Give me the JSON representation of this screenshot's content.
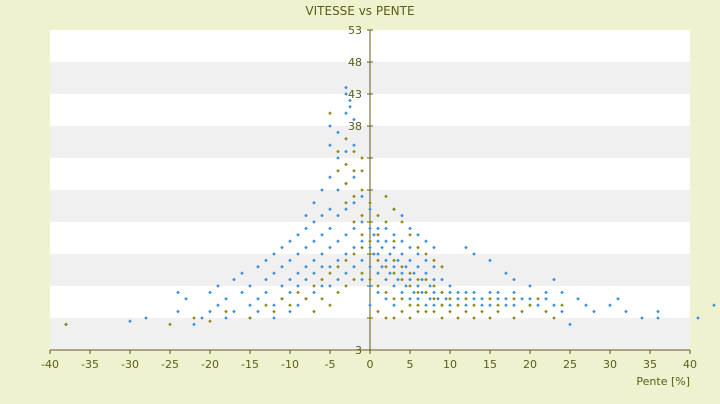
{
  "chart_data": {
    "type": "scatter",
    "title": "VITESSE vs PENTE",
    "xlabel": "Pente [%]",
    "ylabel": "",
    "xlim": [
      -40,
      40
    ],
    "ylim": [
      3,
      53
    ],
    "x_ticks": [
      -40,
      -35,
      -30,
      -25,
      -20,
      -15,
      -10,
      -5,
      0,
      5,
      10,
      15,
      20,
      25,
      30,
      35,
      40
    ],
    "y_ticks": [
      3,
      8,
      13,
      18,
      23,
      28,
      33,
      38,
      43,
      48,
      53
    ],
    "y_tick_labels": [
      "3",
      "",
      "",
      "",
      "",
      "",
      "",
      "38",
      "43",
      "48",
      "53"
    ],
    "grid": "alternating horizontal bands",
    "band_colors": [
      "#ffffff",
      "#f0f0f0"
    ],
    "axis_color": "#5c5c1a",
    "title_color": "#5c5c1a",
    "series": [
      {
        "color": "#3a8fd8",
        "marker": "diamond",
        "points": [
          [
            -38,
            7
          ],
          [
            -30,
            7.5
          ],
          [
            -28,
            8
          ],
          [
            -24,
            12
          ],
          [
            -24,
            9
          ],
          [
            -23,
            11
          ],
          [
            -22,
            7
          ],
          [
            -21,
            8
          ],
          [
            -20,
            12
          ],
          [
            -20,
            9
          ],
          [
            -19,
            13
          ],
          [
            -19,
            10
          ],
          [
            -18,
            8
          ],
          [
            -18,
            11
          ],
          [
            -17,
            14
          ],
          [
            -17,
            9
          ],
          [
            -16,
            12
          ],
          [
            -16,
            15
          ],
          [
            -15,
            10
          ],
          [
            -15,
            13
          ],
          [
            -15,
            8
          ],
          [
            -14,
            16
          ],
          [
            -14,
            11
          ],
          [
            -14,
            9
          ],
          [
            -13,
            14
          ],
          [
            -13,
            12
          ],
          [
            -13,
            17
          ],
          [
            -12,
            10
          ],
          [
            -12,
            15
          ],
          [
            -12,
            18
          ],
          [
            -12,
            8
          ],
          [
            -11,
            13
          ],
          [
            -11,
            16
          ],
          [
            -11,
            19
          ],
          [
            -11,
            11
          ],
          [
            -10,
            14
          ],
          [
            -10,
            17
          ],
          [
            -10,
            20
          ],
          [
            -10,
            9
          ],
          [
            -10,
            12
          ],
          [
            -9,
            15
          ],
          [
            -9,
            18
          ],
          [
            -9,
            21
          ],
          [
            -9,
            13
          ],
          [
            -9,
            10
          ],
          [
            -8,
            16
          ],
          [
            -8,
            19
          ],
          [
            -8,
            22
          ],
          [
            -8,
            14
          ],
          [
            -8,
            11
          ],
          [
            -8,
            24
          ],
          [
            -7,
            17
          ],
          [
            -7,
            20
          ],
          [
            -7,
            23
          ],
          [
            -7,
            15
          ],
          [
            -7,
            12
          ],
          [
            -7,
            26
          ],
          [
            -6,
            18
          ],
          [
            -6,
            21
          ],
          [
            -6,
            24
          ],
          [
            -6,
            16
          ],
          [
            -6,
            13
          ],
          [
            -6,
            28
          ],
          [
            -5,
            19
          ],
          [
            -5,
            22
          ],
          [
            -5,
            25
          ],
          [
            -5,
            30
          ],
          [
            -5,
            35
          ],
          [
            -5,
            38
          ],
          [
            -5,
            16
          ],
          [
            -5,
            13
          ],
          [
            -4,
            20
          ],
          [
            -4,
            24
          ],
          [
            -4,
            28
          ],
          [
            -4,
            33
          ],
          [
            -4,
            37
          ],
          [
            -4,
            17
          ],
          [
            -4,
            14
          ],
          [
            -3,
            21
          ],
          [
            -3,
            25
          ],
          [
            -3,
            29
          ],
          [
            -3,
            34
          ],
          [
            -3,
            40
          ],
          [
            -3,
            43
          ],
          [
            -3,
            44
          ],
          [
            -3,
            18
          ],
          [
            -3,
            15
          ],
          [
            -2.5,
            41
          ],
          [
            -2.5,
            42
          ],
          [
            -2,
            22
          ],
          [
            -2,
            26
          ],
          [
            -2,
            30
          ],
          [
            -2,
            35
          ],
          [
            -2,
            39
          ],
          [
            -2,
            19
          ],
          [
            -2,
            16
          ],
          [
            -1,
            20
          ],
          [
            -1,
            23
          ],
          [
            -1,
            27
          ],
          [
            -1,
            17
          ],
          [
            -1,
            14
          ],
          [
            0,
            16
          ],
          [
            0,
            19
          ],
          [
            0,
            22
          ],
          [
            0,
            25
          ],
          [
            0,
            13
          ],
          [
            0,
            10
          ],
          [
            0.5,
            18
          ],
          [
            0.5,
            21
          ],
          [
            1,
            15
          ],
          [
            1,
            18
          ],
          [
            1,
            20
          ],
          [
            1,
            22
          ],
          [
            1,
            12
          ],
          [
            1.5,
            16
          ],
          [
            1.5,
            19
          ],
          [
            2,
            14
          ],
          [
            2,
            17
          ],
          [
            2,
            20
          ],
          [
            2,
            22
          ],
          [
            2,
            11
          ],
          [
            2.5,
            15
          ],
          [
            2.5,
            18
          ],
          [
            3,
            13
          ],
          [
            3,
            16
          ],
          [
            3,
            19
          ],
          [
            3,
            21
          ],
          [
            3,
            10
          ],
          [
            3.5,
            14
          ],
          [
            3.5,
            17
          ],
          [
            4,
            12
          ],
          [
            4,
            15
          ],
          [
            4,
            18
          ],
          [
            4,
            20
          ],
          [
            4.5,
            13
          ],
          [
            4.5,
            16
          ],
          [
            5,
            11
          ],
          [
            5,
            14
          ],
          [
            5,
            17
          ],
          [
            5,
            19
          ],
          [
            5.5,
            12
          ],
          [
            5.5,
            15
          ],
          [
            6,
            11
          ],
          [
            6,
            13
          ],
          [
            6,
            16
          ],
          [
            6,
            18
          ],
          [
            6.5,
            12
          ],
          [
            6.5,
            14
          ],
          [
            7,
            10
          ],
          [
            7,
            12
          ],
          [
            7,
            15
          ],
          [
            7,
            17
          ],
          [
            7.5,
            11
          ],
          [
            7.5,
            13
          ],
          [
            8,
            10
          ],
          [
            8,
            12
          ],
          [
            8,
            14
          ],
          [
            8,
            16
          ],
          [
            8.5,
            11
          ],
          [
            9,
            10
          ],
          [
            9,
            12
          ],
          [
            9,
            14
          ],
          [
            9.5,
            11
          ],
          [
            10,
            10
          ],
          [
            10,
            12
          ],
          [
            10,
            13
          ],
          [
            11,
            11
          ],
          [
            11,
            12
          ],
          [
            12,
            10
          ],
          [
            12,
            12
          ],
          [
            13,
            11
          ],
          [
            13,
            12
          ],
          [
            14,
            10
          ],
          [
            14,
            11
          ],
          [
            15,
            10
          ],
          [
            15,
            12
          ],
          [
            16,
            11
          ],
          [
            16,
            12
          ],
          [
            17,
            10
          ],
          [
            17,
            11
          ],
          [
            18,
            10
          ],
          [
            18,
            12
          ],
          [
            19,
            11
          ],
          [
            20,
            10
          ],
          [
            20,
            11
          ],
          [
            21,
            10
          ],
          [
            22,
            11
          ],
          [
            23,
            10
          ],
          [
            24,
            9
          ],
          [
            25,
            7
          ],
          [
            27,
            10
          ],
          [
            28,
            9
          ],
          [
            30,
            10
          ],
          [
            31,
            11
          ],
          [
            32,
            9
          ],
          [
            34,
            8
          ],
          [
            36,
            9
          ],
          [
            36,
            8
          ],
          [
            41,
            8
          ],
          [
            43,
            10
          ],
          [
            3,
            25
          ],
          [
            4,
            24
          ],
          [
            5,
            22
          ],
          [
            6,
            21
          ],
          [
            7,
            20
          ],
          [
            8,
            19
          ],
          [
            12,
            19
          ],
          [
            13,
            18
          ],
          [
            15,
            17
          ],
          [
            17,
            15
          ],
          [
            18,
            14
          ],
          [
            20,
            13
          ],
          [
            22,
            12
          ],
          [
            23,
            14
          ],
          [
            24,
            12
          ],
          [
            26,
            11
          ]
        ]
      },
      {
        "color": "#8c8c14",
        "marker": "diamond",
        "points": [
          [
            -38,
            7
          ],
          [
            -25,
            7
          ],
          [
            -22,
            8
          ],
          [
            -20,
            7.5
          ],
          [
            -18,
            9
          ],
          [
            -15,
            8
          ],
          [
            -13,
            10
          ],
          [
            -12,
            9
          ],
          [
            -11,
            11
          ],
          [
            -10,
            10
          ],
          [
            -9,
            12
          ],
          [
            -8,
            11
          ],
          [
            -7,
            13
          ],
          [
            -7,
            9
          ],
          [
            -6,
            14
          ],
          [
            -6,
            11
          ],
          [
            -5,
            15
          ],
          [
            -5,
            10
          ],
          [
            -5,
            40
          ],
          [
            -4,
            16
          ],
          [
            -4,
            12
          ],
          [
            -4,
            31
          ],
          [
            -4,
            34
          ],
          [
            -3,
            17
          ],
          [
            -3,
            13
          ],
          [
            -3,
            26
          ],
          [
            -3,
            29
          ],
          [
            -3,
            32
          ],
          [
            -3,
            36
          ],
          [
            -2,
            18
          ],
          [
            -2,
            14
          ],
          [
            -2,
            23
          ],
          [
            -2,
            27
          ],
          [
            -2,
            31
          ],
          [
            -2,
            34
          ],
          [
            -1,
            19
          ],
          [
            -1,
            15
          ],
          [
            -1,
            21
          ],
          [
            -1,
            24
          ],
          [
            -1,
            28
          ],
          [
            -1,
            31
          ],
          [
            -1,
            33
          ],
          [
            0,
            18
          ],
          [
            0,
            14
          ],
          [
            0,
            20
          ],
          [
            0,
            23
          ],
          [
            0,
            26
          ],
          [
            0,
            8
          ],
          [
            1,
            17
          ],
          [
            1,
            13
          ],
          [
            1,
            21
          ],
          [
            1,
            24
          ],
          [
            1,
            9
          ],
          [
            2,
            16
          ],
          [
            2,
            12
          ],
          [
            2,
            23
          ],
          [
            2,
            8
          ],
          [
            3,
            15
          ],
          [
            3,
            11
          ],
          [
            3,
            17
          ],
          [
            3,
            20
          ],
          [
            3,
            8
          ],
          [
            4,
            14
          ],
          [
            4,
            11
          ],
          [
            4,
            16
          ],
          [
            4,
            9
          ],
          [
            5,
            13
          ],
          [
            5,
            10
          ],
          [
            5,
            15
          ],
          [
            5,
            8
          ],
          [
            6,
            12
          ],
          [
            6,
            10
          ],
          [
            6,
            14
          ],
          [
            6,
            9
          ],
          [
            7,
            12
          ],
          [
            7,
            9
          ],
          [
            7,
            14
          ],
          [
            8,
            11
          ],
          [
            8,
            9
          ],
          [
            8,
            13
          ],
          [
            9,
            10
          ],
          [
            9,
            12
          ],
          [
            9,
            8
          ],
          [
            10,
            11
          ],
          [
            10,
            9
          ],
          [
            11,
            10
          ],
          [
            11,
            8
          ],
          [
            12,
            11
          ],
          [
            12,
            9
          ],
          [
            13,
            10
          ],
          [
            13,
            8
          ],
          [
            14,
            9
          ],
          [
            15,
            11
          ],
          [
            15,
            8
          ],
          [
            16,
            10
          ],
          [
            16,
            9
          ],
          [
            18,
            11
          ],
          [
            18,
            8
          ],
          [
            19,
            9
          ],
          [
            20,
            10
          ],
          [
            21,
            11
          ],
          [
            22,
            9
          ],
          [
            23,
            8
          ],
          [
            24,
            10
          ],
          [
            2,
            27
          ],
          [
            3,
            25
          ],
          [
            4,
            23
          ],
          [
            5,
            21
          ],
          [
            6,
            19
          ],
          [
            7,
            18
          ],
          [
            8,
            17
          ],
          [
            9,
            16
          ]
        ]
      }
    ]
  }
}
